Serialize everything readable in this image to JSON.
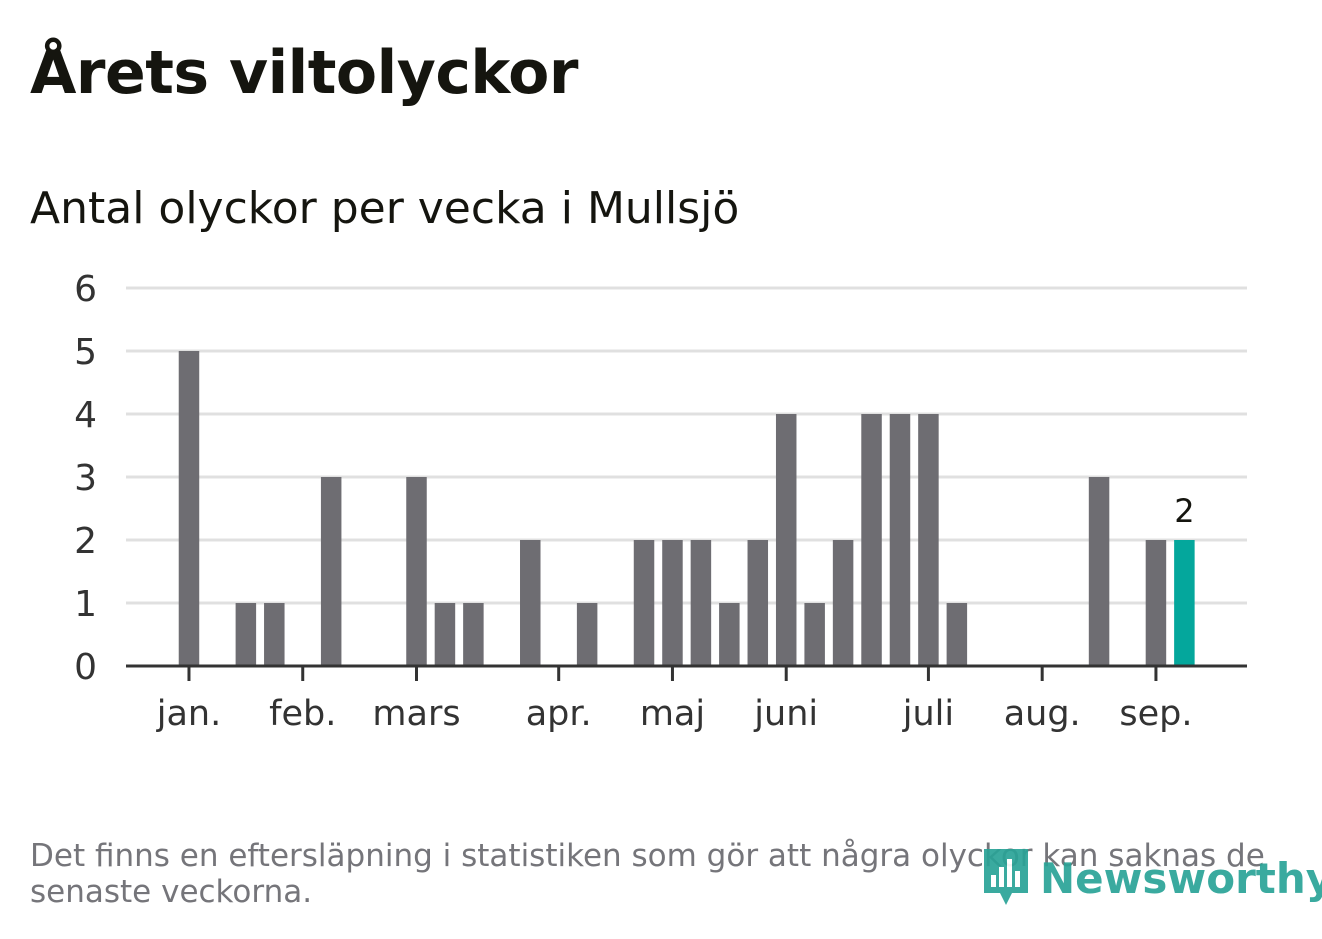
{
  "title": "Årets viltolyckor",
  "subtitle": "Antal olyckor per vecka i Mullsjö",
  "footnote": "Det finns en eftersläpning i statistiken som gör att några olyckor kan saknas de senaste veckorna.",
  "logo": {
    "text": "Newsworthy",
    "icon": "newsworthy-bar-chart-icon"
  },
  "colors": {
    "bar": "#6e6d72",
    "highlight": "#04a79c",
    "grid": "#e0e0e0",
    "axis": "#333333",
    "text": "#15150f",
    "muted": "#75757a"
  },
  "chart_data": {
    "type": "bar",
    "title": "Årets viltolyckor",
    "subtitle": "Antal olyckor per vecka i Mullsjö",
    "ylim": [
      0,
      6
    ],
    "yticks": [
      0,
      1,
      2,
      3,
      4,
      5,
      6
    ],
    "grid": true,
    "x": [
      1,
      2,
      3,
      4,
      5,
      6,
      7,
      8,
      9,
      10,
      11,
      12,
      13,
      14,
      15,
      16,
      17,
      18,
      19,
      20,
      21,
      22,
      23,
      24,
      25,
      26,
      27,
      28,
      29,
      30,
      31,
      32,
      33,
      34,
      35,
      36,
      37,
      38
    ],
    "values": [
      0,
      0,
      5,
      0,
      1,
      1,
      0,
      3,
      0,
      0,
      3,
      1,
      1,
      0,
      2,
      0,
      1,
      0,
      2,
      2,
      2,
      1,
      2,
      4,
      1,
      2,
      4,
      4,
      4,
      1,
      0,
      0,
      0,
      0,
      3,
      0,
      2,
      2
    ],
    "highlight_index": 37,
    "highlight_label": "2",
    "month_ticks": [
      {
        "label": "jan.",
        "x": 3
      },
      {
        "label": "feb.",
        "x": 7
      },
      {
        "label": "mars",
        "x": 11
      },
      {
        "label": "apr.",
        "x": 16
      },
      {
        "label": "maj",
        "x": 20
      },
      {
        "label": "juni",
        "x": 24
      },
      {
        "label": "juli",
        "x": 29
      },
      {
        "label": "aug.",
        "x": 33
      },
      {
        "label": "sep.",
        "x": 37
      }
    ]
  }
}
